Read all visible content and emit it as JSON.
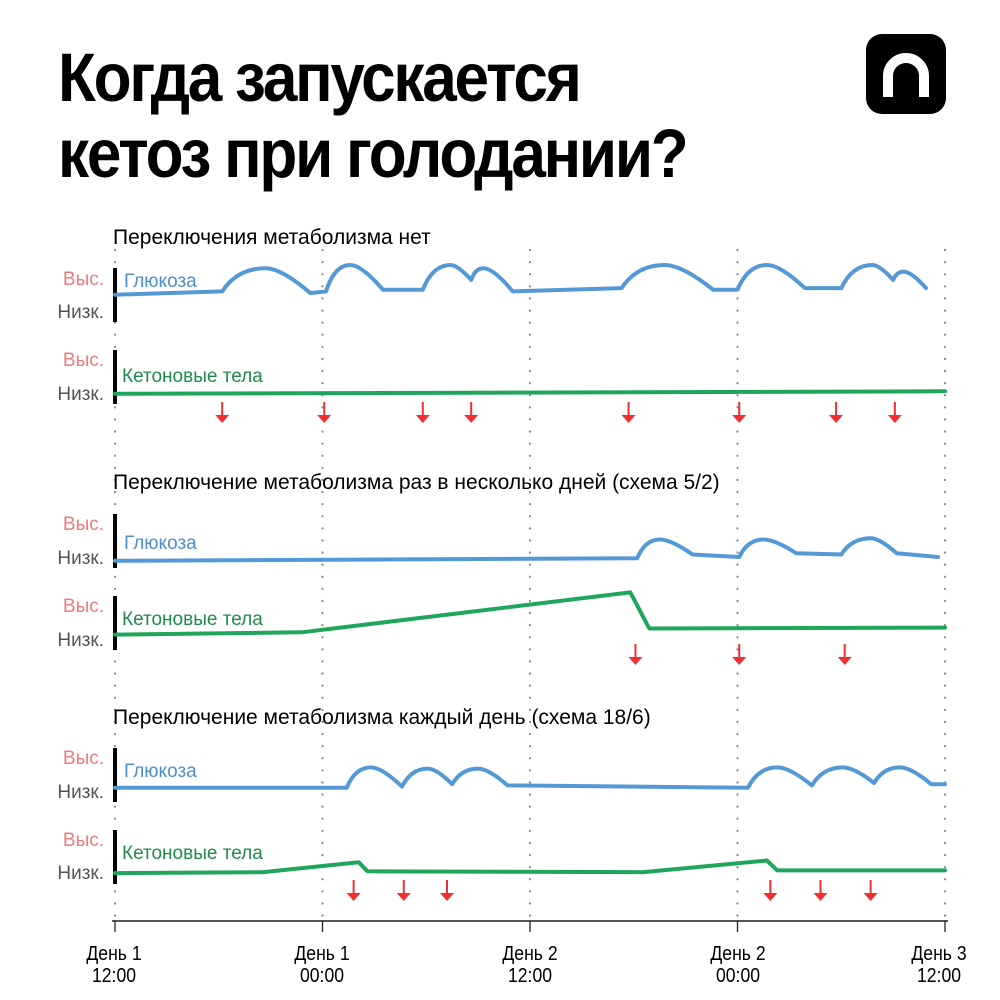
{
  "header": {
    "title_line1": "Когда запускается",
    "title_line2": "кетоз при голодании?",
    "logo_icon": "n-logo-icon"
  },
  "colors": {
    "glucose": "#5499d6",
    "ketone": "#1fa65a",
    "meal_arrow": "#f03030",
    "high_label": "#ef7a7f",
    "low_label": "#555555",
    "grid": "#8a8a8a"
  },
  "axis": {
    "ticks": [
      {
        "day": "День 1",
        "time": "12:00"
      },
      {
        "day": "День 1",
        "time": "00:00"
      },
      {
        "day": "День 2",
        "time": "12:00"
      },
      {
        "day": "День 2",
        "time": "00:00"
      },
      {
        "day": "День 3",
        "time": "12:00"
      }
    ]
  },
  "labels": {
    "high": "Выс.",
    "low": "Низк.",
    "glucose": "Глюкоза",
    "ketone": "Кетоновые тела"
  },
  "chart_data": [
    {
      "type": "line",
      "title": "Переключения метаболизма нет",
      "x_range_hours": [
        0,
        48
      ],
      "x_tick_labels": [
        "День 1 12:00",
        "День 1 00:00",
        "День 2 12:00",
        "День 2 00:00",
        "День 3 12:00"
      ],
      "y_levels": [
        "Низк.",
        "Выс."
      ],
      "series": [
        {
          "name": "Глюкоза",
          "points": [
            [
              0,
              0.1
            ],
            [
              6.2,
              0.2
            ],
            [
              8.7,
              0.9
            ],
            [
              11.3,
              0.15
            ],
            [
              12.2,
              0.2
            ],
            [
              13.6,
              1.0
            ],
            [
              15.5,
              0.25
            ],
            [
              17.8,
              0.25
            ],
            [
              19.4,
              1.0
            ],
            [
              20.6,
              0.55
            ],
            [
              21.3,
              0.9
            ],
            [
              23,
              0.2
            ],
            [
              29.3,
              0.3
            ],
            [
              31.8,
              1.0
            ],
            [
              34.6,
              0.25
            ],
            [
              36,
              0.25
            ],
            [
              37.7,
              1.0
            ],
            [
              39.9,
              0.3
            ],
            [
              42,
              0.3
            ],
            [
              43.8,
              1.0
            ],
            [
              45,
              0.55
            ],
            [
              45.6,
              0.8
            ],
            [
              46.9,
              0.3
            ]
          ]
        },
        {
          "name": "Кетоновые тела",
          "points": [
            [
              0,
              0.05
            ],
            [
              48,
              0.15
            ]
          ]
        }
      ],
      "meal_arrows_hours": [
        6.2,
        12.1,
        17.8,
        20.6,
        29.7,
        36.1,
        41.7,
        45.1
      ]
    },
    {
      "type": "line",
      "title": "Переключение метаболизма раз в несколько дней (схема 5/2)",
      "x_range_hours": [
        0,
        48
      ],
      "x_tick_labels": [
        "День 1 12:00",
        "День 1 00:00",
        "День 2 12:00",
        "День 2 00:00",
        "День 3 12:00"
      ],
      "y_levels": [
        "Низк.",
        "Выс."
      ],
      "series": [
        {
          "name": "Глюкоза",
          "points": [
            [
              0,
              0.05
            ],
            [
              30.2,
              0.15
            ],
            [
              31.5,
              0.9
            ],
            [
              33.4,
              0.3
            ],
            [
              36.1,
              0.2
            ],
            [
              37.5,
              0.9
            ],
            [
              39.4,
              0.35
            ],
            [
              42,
              0.3
            ],
            [
              43.7,
              0.95
            ],
            [
              45.2,
              0.35
            ],
            [
              47.6,
              0.2
            ]
          ]
        },
        {
          "name": "Кетоновые тела",
          "points": [
            [
              0,
              0.05
            ],
            [
              10.8,
              0.1
            ],
            [
              22,
              0.6
            ],
            [
              29.8,
              0.95
            ],
            [
              30.9,
              0.18
            ],
            [
              48,
              0.2
            ]
          ]
        }
      ],
      "meal_arrows_hours": [
        30.1,
        36.1,
        42.2
      ]
    },
    {
      "type": "line",
      "title": "Переключение метаболизма каждый день (схема 18/6)",
      "x_range_hours": [
        0,
        48
      ],
      "x_tick_labels": [
        "День 1 12:00",
        "День 1 00:00",
        "День 2 12:00",
        "День 2 00:00",
        "День 3 12:00"
      ],
      "y_levels": [
        "Низк.",
        "Выс."
      ],
      "series": [
        {
          "name": "Глюкоза",
          "points": [
            [
              0,
              0.05
            ],
            [
              13.4,
              0.05
            ],
            [
              14.8,
              0.9
            ],
            [
              16.6,
              0.1
            ],
            [
              18.1,
              0.85
            ],
            [
              19.5,
              0.2
            ],
            [
              21.0,
              0.85
            ],
            [
              22.7,
              0.15
            ],
            [
              36.6,
              0.05
            ],
            [
              38.3,
              0.9
            ],
            [
              40.3,
              0.15
            ],
            [
              42.1,
              0.9
            ],
            [
              43.9,
              0.25
            ],
            [
              45.4,
              0.9
            ],
            [
              47.2,
              0.2
            ],
            [
              48,
              0.2
            ]
          ]
        },
        {
          "name": "Кетоновые тела",
          "points": [
            [
              0,
              0.05
            ],
            [
              8.5,
              0.1
            ],
            [
              14.1,
              0.65
            ],
            [
              14.6,
              0.15
            ],
            [
              30.5,
              0.1
            ],
            [
              37.7,
              0.75
            ],
            [
              38.3,
              0.2
            ],
            [
              48,
              0.2
            ]
          ]
        }
      ],
      "meal_arrows_hours": [
        13.8,
        16.7,
        19.2,
        37.9,
        40.8,
        43.7
      ]
    }
  ]
}
